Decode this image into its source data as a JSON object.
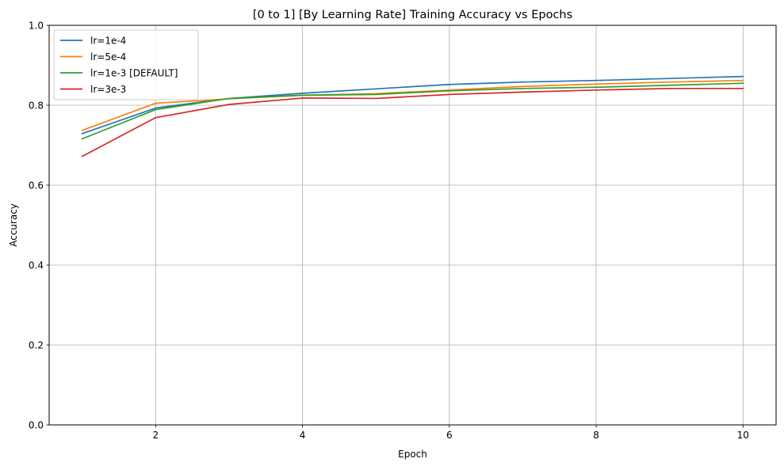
{
  "chart_data": {
    "type": "line",
    "title": "[0 to 1] [By Learning Rate] Training Accuracy vs Epochs",
    "xlabel": "Epoch",
    "ylabel": "Accuracy",
    "x": [
      1,
      2,
      3,
      4,
      5,
      6,
      7,
      8,
      9,
      10
    ],
    "xlim": [
      0.55,
      10.45
    ],
    "ylim": [
      0,
      1
    ],
    "xticks": [
      2,
      4,
      6,
      8,
      10
    ],
    "xtick_labels": [
      "2",
      "4",
      "6",
      "8",
      "10"
    ],
    "yticks": [
      0,
      0.2,
      0.4,
      0.6,
      0.8,
      1.0
    ],
    "ytick_labels": [
      "0.0",
      "0.2",
      "0.4",
      "0.6",
      "0.8",
      "1.0"
    ],
    "grid": true,
    "legend_position": "top-left",
    "series": [
      {
        "name": "lr=1e-4",
        "color": "#1f77b4",
        "values": [
          0.729,
          0.793,
          0.817,
          0.83,
          0.841,
          0.852,
          0.858,
          0.862,
          0.867,
          0.872
        ]
      },
      {
        "name": "lr=5e-4",
        "color": "#ff7f0e",
        "values": [
          0.737,
          0.805,
          0.816,
          0.825,
          0.829,
          0.838,
          0.847,
          0.853,
          0.858,
          0.862
        ]
      },
      {
        "name": "lr=1e-3 [DEFAULT]",
        "color": "#2ca02c",
        "values": [
          0.716,
          0.789,
          0.817,
          0.825,
          0.827,
          0.836,
          0.842,
          0.845,
          0.85,
          0.855
        ]
      },
      {
        "name": "lr=3e-3",
        "color": "#d62728",
        "values": [
          0.672,
          0.769,
          0.802,
          0.818,
          0.817,
          0.827,
          0.833,
          0.838,
          0.842,
          0.842
        ]
      }
    ]
  }
}
